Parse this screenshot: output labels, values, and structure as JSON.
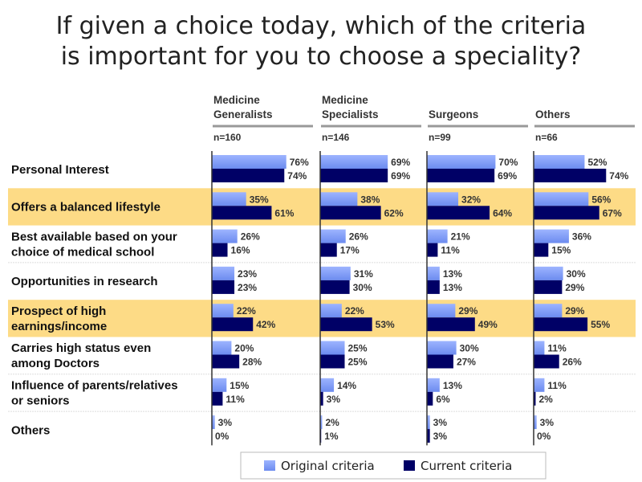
{
  "title_line1": "If given a choice today, which of the criteria",
  "title_line2": "is important for you to choose a speciality?",
  "chart_data": {
    "type": "bar",
    "orientation": "horizontal",
    "title": "If given a choice today, which of the criteria is important for you to choose a speciality?",
    "categories": [
      {
        "label": [
          "Personal Interest"
        ],
        "highlight": false
      },
      {
        "label": [
          "Offers a balanced lifestyle"
        ],
        "highlight": true
      },
      {
        "label": [
          "Best available based on your",
          "choice of medical school"
        ],
        "highlight": false
      },
      {
        "label": [
          "Opportunities in research"
        ],
        "highlight": false
      },
      {
        "label": [
          "Prospect of high",
          "earnings/income"
        ],
        "highlight": true
      },
      {
        "label": [
          "Carries high status even",
          "among Doctors"
        ],
        "highlight": false
      },
      {
        "label": [
          "Influence of parents/relatives",
          "or seniors"
        ],
        "highlight": false
      },
      {
        "label": [
          "Others"
        ],
        "highlight": false
      }
    ],
    "panels": [
      {
        "header": [
          "Medicine",
          "Generalists"
        ],
        "n": "n=160",
        "original": [
          76,
          35,
          26,
          23,
          22,
          20,
          15,
          3
        ],
        "current": [
          74,
          61,
          16,
          23,
          42,
          28,
          11,
          0
        ]
      },
      {
        "header": [
          "Medicine",
          "Specialists"
        ],
        "n": "n=146",
        "original": [
          69,
          38,
          26,
          31,
          22,
          25,
          14,
          2
        ],
        "current": [
          69,
          62,
          17,
          30,
          53,
          25,
          3,
          1
        ]
      },
      {
        "header": [
          "",
          "Surgeons"
        ],
        "n": "n=99",
        "original": [
          70,
          32,
          21,
          13,
          29,
          30,
          13,
          3
        ],
        "current": [
          69,
          64,
          11,
          13,
          49,
          27,
          6,
          3
        ]
      },
      {
        "header": [
          "",
          "Others"
        ],
        "n": "n=66",
        "original": [
          52,
          56,
          36,
          30,
          29,
          11,
          11,
          3
        ],
        "current": [
          74,
          67,
          15,
          29,
          55,
          26,
          2,
          0
        ]
      }
    ],
    "series": [
      {
        "name": "Original criteria",
        "color": "#7F9CF5"
      },
      {
        "name": "Current criteria",
        "color": "#000066"
      }
    ],
    "unit": "%",
    "highlight_color": "#FDDB86",
    "legend_position": "bottom"
  }
}
